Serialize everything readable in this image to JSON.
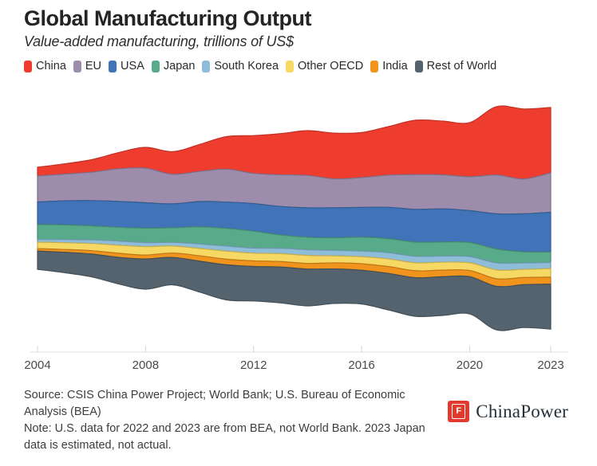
{
  "chart_data": {
    "type": "area",
    "variant": "streamgraph-silhouette-stacked",
    "title": "Global Manufacturing Output",
    "subtitle": "Value-added manufacturing, trillions of US$",
    "units": "trillions of US$",
    "grid": false,
    "legend_position": "top",
    "x": [
      2004,
      2005,
      2006,
      2007,
      2008,
      2009,
      2010,
      2011,
      2012,
      2013,
      2014,
      2015,
      2016,
      2017,
      2018,
      2019,
      2020,
      2021,
      2022,
      2023
    ],
    "x_ticks": [
      2004,
      2008,
      2012,
      2016,
      2020,
      2023
    ],
    "series_order": "top-to-bottom",
    "series": [
      {
        "name": "China",
        "color": "#ee3d2f",
        "values": [
          0.62,
          0.73,
          0.89,
          1.15,
          1.48,
          1.61,
          1.92,
          2.32,
          2.69,
          2.93,
          3.18,
          3.25,
          3.2,
          3.46,
          3.87,
          3.82,
          3.85,
          4.87,
          4.98,
          4.66
        ]
      },
      {
        "name": "EU",
        "color": "#9e8cac",
        "values": [
          1.85,
          1.9,
          2.02,
          2.32,
          2.46,
          2.1,
          2.14,
          2.34,
          2.15,
          2.25,
          2.3,
          2.06,
          2.12,
          2.29,
          2.47,
          2.42,
          2.41,
          2.76,
          2.48,
          2.8
        ]
      },
      {
        "name": "USA",
        "color": "#4073b7",
        "values": [
          1.61,
          1.71,
          1.8,
          1.84,
          1.81,
          1.7,
          1.8,
          1.87,
          1.96,
          2.03,
          2.1,
          2.14,
          2.12,
          2.23,
          2.33,
          2.36,
          2.27,
          2.5,
          2.7,
          2.83
        ]
      },
      {
        "name": "Japan",
        "color": "#57ab8b",
        "values": [
          1.05,
          1.04,
          0.99,
          0.98,
          1.03,
          1.04,
          1.22,
          1.26,
          1.2,
          0.95,
          0.89,
          0.89,
          0.99,
          1.0,
          1.01,
          1.0,
          1.0,
          0.99,
          0.79,
          0.74
        ]
      },
      {
        "name": "South Korea",
        "color": "#8dbdd8",
        "values": [
          0.2,
          0.23,
          0.26,
          0.3,
          0.28,
          0.26,
          0.32,
          0.36,
          0.36,
          0.38,
          0.4,
          0.39,
          0.4,
          0.44,
          0.46,
          0.44,
          0.44,
          0.5,
          0.46,
          0.43
        ]
      },
      {
        "name": "Other OECD",
        "color": "#f6d865",
        "values": [
          0.46,
          0.48,
          0.51,
          0.57,
          0.6,
          0.5,
          0.52,
          0.57,
          0.55,
          0.56,
          0.57,
          0.5,
          0.5,
          0.54,
          0.57,
          0.56,
          0.55,
          0.63,
          0.58,
          0.61
        ]
      },
      {
        "name": "India",
        "color": "#f0941e",
        "values": [
          0.17,
          0.2,
          0.24,
          0.29,
          0.28,
          0.31,
          0.38,
          0.4,
          0.4,
          0.39,
          0.4,
          0.43,
          0.46,
          0.49,
          0.49,
          0.47,
          0.44,
          0.54,
          0.51,
          0.5
        ]
      },
      {
        "name": "Rest of World",
        "color": "#54636d",
        "values": [
          1.3,
          1.45,
          1.62,
          1.89,
          2.15,
          1.95,
          2.2,
          2.5,
          2.45,
          2.55,
          2.62,
          2.45,
          2.4,
          2.6,
          2.75,
          2.75,
          2.65,
          3.1,
          3.05,
          3.2
        ]
      }
    ],
    "axis_colors": {
      "line": "#e2e2e2",
      "tick": "#d4d4d4",
      "label": "#4a4a4a"
    }
  },
  "footer": {
    "source_line": "Source: CSIS China Power Project; World Bank; U.S. Bureau of Economic Analysis (BEA)",
    "note_line": "Note: U.S. data for 2022 and 2023 are from BEA, not World Bank. 2023 Japan data is estimated, not actual.",
    "logo_text": "ChinaPower",
    "logo_glyph": "F",
    "logo_color": "#e23a2e"
  }
}
